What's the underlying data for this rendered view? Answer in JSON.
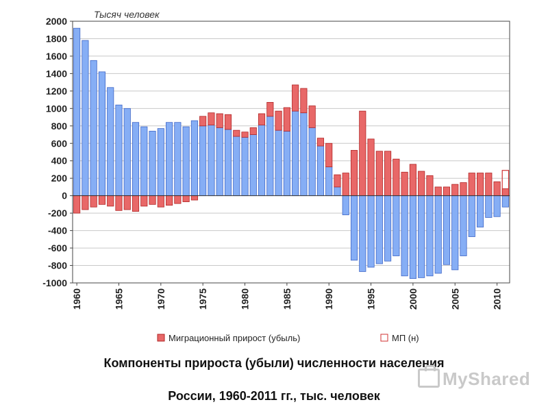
{
  "chart_data": {
    "type": "bar",
    "unit_label": "Тысяч человек",
    "ylim": [
      -1000,
      2000
    ],
    "yticks": [
      2000,
      1800,
      1600,
      1400,
      1200,
      1000,
      800,
      600,
      400,
      200,
      0,
      -200,
      -400,
      -600,
      -800,
      -1000
    ],
    "x_tick_labels": [
      "1960",
      "1965",
      "1970",
      "1975",
      "1980",
      "1985",
      "1990",
      "1995",
      "2000",
      "2005",
      "2010"
    ],
    "years": [
      1960,
      1961,
      1962,
      1963,
      1964,
      1965,
      1966,
      1967,
      1968,
      1969,
      1970,
      1971,
      1972,
      1973,
      1974,
      1975,
      1976,
      1977,
      1978,
      1979,
      1980,
      1981,
      1982,
      1983,
      1984,
      1985,
      1986,
      1987,
      1988,
      1989,
      1990,
      1991,
      1992,
      1993,
      1994,
      1995,
      1996,
      1997,
      1998,
      1999,
      2000,
      2001,
      2002,
      2003,
      2004,
      2005,
      2006,
      2007,
      2008,
      2009,
      2010,
      2011
    ],
    "natural": [
      1920,
      1780,
      1550,
      1420,
      1240,
      1040,
      1000,
      840,
      790,
      740,
      770,
      840,
      840,
      790,
      860,
      800,
      810,
      780,
      760,
      680,
      670,
      700,
      810,
      910,
      750,
      740,
      970,
      950,
      780,
      570,
      330,
      100,
      -220,
      -740,
      -870,
      -820,
      -780,
      -750,
      -690,
      -920,
      -950,
      -940,
      -920,
      -890,
      -790,
      -850,
      -690,
      -470,
      -360,
      -250,
      -240,
      -130
    ],
    "migration": [
      -200,
      -160,
      -130,
      -100,
      -120,
      -170,
      -160,
      -180,
      -120,
      -100,
      -130,
      -110,
      -90,
      -70,
      -50,
      110,
      140,
      160,
      170,
      70,
      60,
      80,
      130,
      160,
      220,
      270,
      300,
      280,
      250,
      90,
      270,
      140,
      260,
      520,
      970,
      650,
      510,
      510,
      420,
      270,
      360,
      280,
      230,
      100,
      100,
      130,
      150,
      260,
      260,
      260,
      160,
      80
    ],
    "estimate_last_year": 290,
    "series_legend": {
      "migration": "Миграционный прирост (убыль)",
      "estimate": "МП (н)"
    },
    "grid": true,
    "legend_position": "bottom",
    "colors": {
      "natural": "#86aef5",
      "natural_stroke": "#3f66c6",
      "migration": "#e86868",
      "migration_stroke": "#b12525",
      "estimate_fill": "#ffffff",
      "estimate_stroke": "#d03030"
    }
  },
  "caption": {
    "line1": "Компоненты прироста (убыли) численности населения",
    "line2": "России, 1960-2011 гг., тыс. человек"
  },
  "watermark": "MyShared"
}
